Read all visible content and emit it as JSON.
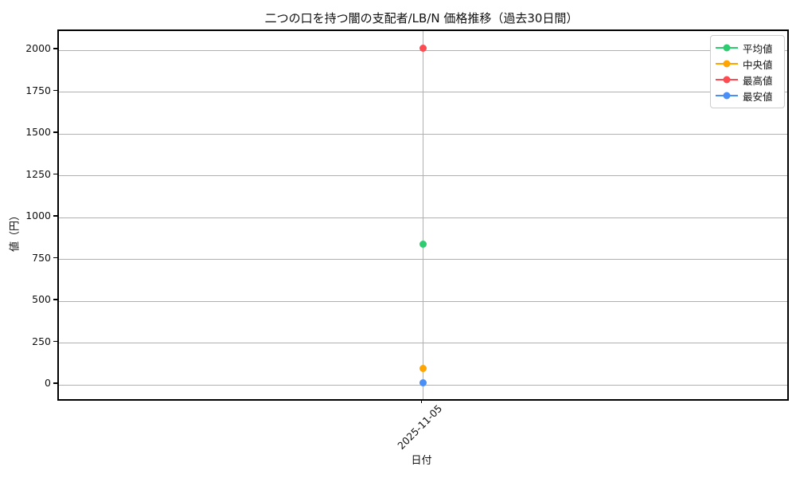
{
  "figure": {
    "background": "#ffffff",
    "text_color": "#111111",
    "grid_color": "#b0b0b0",
    "spine_color": "#000000"
  },
  "chart_data": {
    "type": "line",
    "title": "二つの口を持つ闇の支配者/LB/N 価格推移（過去30日間）",
    "xlabel": "日付",
    "ylabel": "値（円）",
    "x": [
      "2025-11-05"
    ],
    "series": [
      {
        "name": "平均値",
        "color": "#2ecc71",
        "values": [
          843
        ]
      },
      {
        "name": "中央値",
        "color": "#ffa502",
        "values": [
          97
        ]
      },
      {
        "name": "最高値",
        "color": "#fc4b51",
        "values": [
          2015
        ]
      },
      {
        "name": "最安値",
        "color": "#4a8ff5",
        "values": [
          15
        ]
      }
    ],
    "ylim": [
      -85,
      2115
    ],
    "yticks": [
      0,
      250,
      500,
      750,
      1000,
      1250,
      1500,
      1750,
      2000
    ],
    "grid": true,
    "legend_position": "upper right"
  }
}
